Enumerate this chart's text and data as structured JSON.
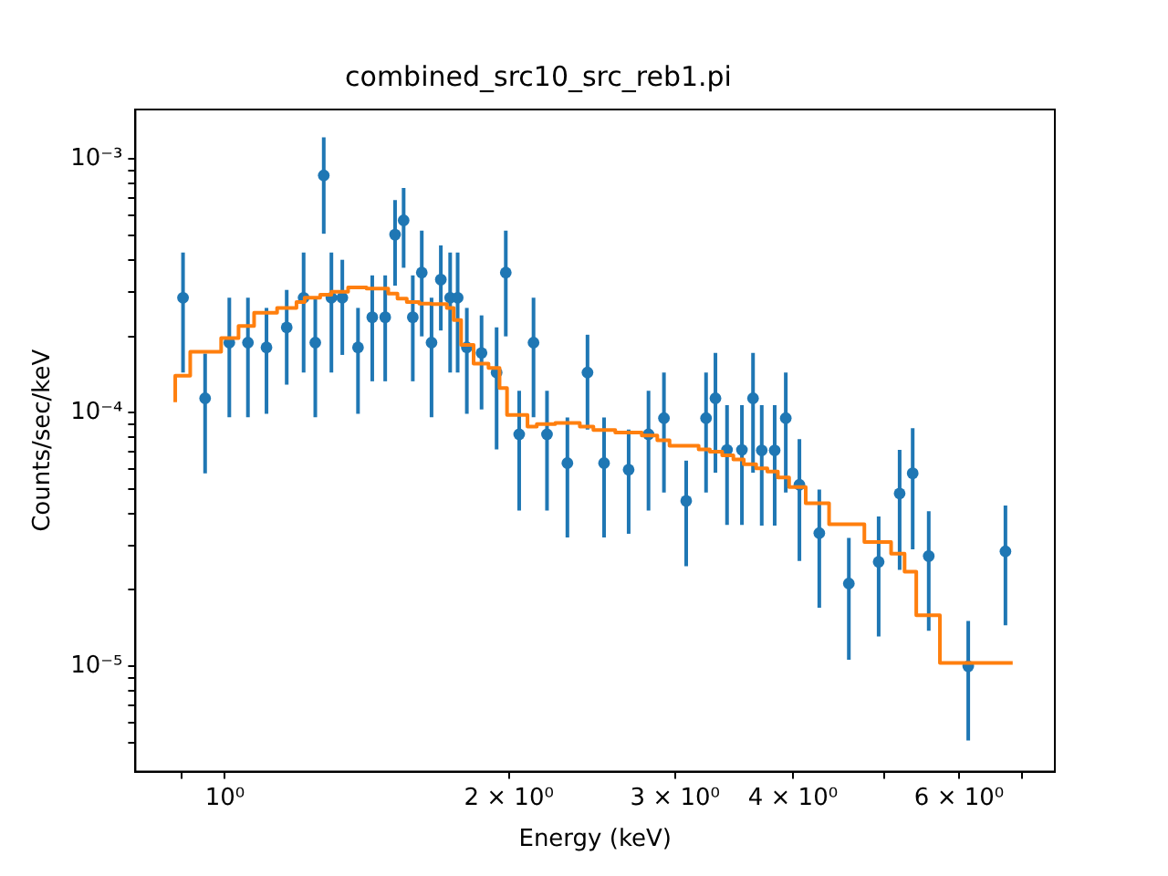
{
  "chart_data": {
    "type": "scatter",
    "title": "combined_src10_src_reb1.pi",
    "xlabel": "Energy (keV)",
    "ylabel": "Counts/sec/keV",
    "log": "xy",
    "grid": false,
    "legend": false,
    "xlim": [
      0.804,
      7.58
    ],
    "ylim": [
      3.84e-06,
      0.00157
    ],
    "xticks": [
      {
        "value": 0.9,
        "label": null
      },
      {
        "value": 1,
        "label": "10⁰"
      },
      {
        "value": 2,
        "label": "2 × 10⁰"
      },
      {
        "value": 3,
        "label": "3 × 10⁰"
      },
      {
        "value": 4,
        "label": "4 × 10⁰"
      },
      {
        "value": 5,
        "label": null
      },
      {
        "value": 6,
        "label": "6 × 10⁰"
      },
      {
        "value": 7,
        "label": null
      }
    ],
    "yticks": [
      {
        "value": 5e-06,
        "label": null
      },
      {
        "value": 6e-06,
        "label": null
      },
      {
        "value": 7e-06,
        "label": null
      },
      {
        "value": 8e-06,
        "label": null
      },
      {
        "value": 9e-06,
        "label": null
      },
      {
        "value": 1e-05,
        "label": "10⁻⁵"
      },
      {
        "value": 2e-05,
        "label": null
      },
      {
        "value": 3e-05,
        "label": null
      },
      {
        "value": 4e-05,
        "label": null
      },
      {
        "value": 5e-05,
        "label": null
      },
      {
        "value": 6e-05,
        "label": null
      },
      {
        "value": 7e-05,
        "label": null
      },
      {
        "value": 8e-05,
        "label": null
      },
      {
        "value": 9e-05,
        "label": null
      },
      {
        "value": 0.0001,
        "label": "10⁻⁴"
      },
      {
        "value": 0.0002,
        "label": null
      },
      {
        "value": 0.0003,
        "label": null
      },
      {
        "value": 0.0004,
        "label": null
      },
      {
        "value": 0.0005,
        "label": null
      },
      {
        "value": 0.0006,
        "label": null
      },
      {
        "value": 0.0007,
        "label": null
      },
      {
        "value": 0.0008,
        "label": null
      },
      {
        "value": 0.0009,
        "label": null
      },
      {
        "value": 0.001,
        "label": "10⁻³"
      }
    ],
    "series": [
      {
        "type": "scatter",
        "color": "#1f77b4",
        "marker": "circle",
        "x": [
          0.903,
          0.953,
          1.011,
          1.058,
          1.107,
          1.163,
          1.212,
          1.247,
          1.273,
          1.297,
          1.332,
          1.384,
          1.433,
          1.479,
          1.515,
          1.547,
          1.582,
          1.617,
          1.656,
          1.694,
          1.733,
          1.765,
          1.805,
          1.871,
          1.941,
          1.985,
          2.051,
          2.124,
          2.195,
          2.307,
          2.423,
          2.523,
          2.679,
          2.812,
          2.92,
          3.083,
          3.236,
          3.311,
          3.406,
          3.532,
          3.629,
          3.707,
          3.826,
          3.931,
          4.064,
          4.266,
          4.585,
          4.931,
          5.19,
          5.358,
          5.572,
          6.136,
          6.719
        ],
        "values": [
          0.000284,
          0.000114,
          0.000189,
          0.000189,
          0.000181,
          0.000217,
          0.000284,
          0.000189,
          0.000863,
          0.000284,
          0.000284,
          0.000181,
          0.000238,
          0.000238,
          0.000504,
          0.000574,
          0.000238,
          0.000357,
          0.000189,
          0.000335,
          0.000284,
          0.000284,
          0.000181,
          0.000172,
          0.000144,
          0.000357,
          8.22e-05,
          0.000189,
          8.22e-05,
          6.33e-05,
          0.000144,
          6.33e-05,
          5.96e-05,
          8.22e-05,
          9.52e-05,
          4.49e-05,
          9.52e-05,
          0.000114,
          7.13e-05,
          7.13e-05,
          0.000114,
          7.1e-05,
          7.1e-05,
          9.52e-05,
          5.2e-05,
          3.35e-05,
          2.12e-05,
          2.58e-05,
          4.8e-05,
          5.77e-05,
          2.72e-05,
          1e-05,
          2.84e-05
        ],
        "errors": [
          [
            0.000144,
            0.000428
          ],
          [
            5.77e-05,
            0.000171
          ],
          [
            9.6e-05,
            0.000284
          ],
          [
            9.6e-05,
            0.000284
          ],
          [
            9.9e-05,
            0.000259
          ],
          [
            0.000129,
            0.000305
          ],
          [
            0.000144,
            0.000428
          ],
          [
            9.6e-05,
            0.000284
          ],
          [
            0.000508,
            0.00122
          ],
          [
            0.000144,
            0.000428
          ],
          [
            0.000169,
            0.000401
          ],
          [
            9.9e-05,
            0.000259
          ],
          [
            0.000133,
            0.000348
          ],
          [
            0.000133,
            0.000348
          ],
          [
            0.000317,
            0.00069
          ],
          [
            0.000373,
            0.00077
          ],
          [
            0.000133,
            0.000348
          ],
          [
            0.0002,
            0.000523
          ],
          [
            9.6e-05,
            0.000284
          ],
          [
            0.000211,
            0.000457
          ],
          [
            0.000144,
            0.000428
          ],
          [
            0.000144,
            0.000428
          ],
          [
            9.9e-05,
            0.000259
          ],
          [
            0.000103,
            0.000242
          ],
          [
            7.17e-05,
            0.000217
          ],
          [
            0.0002,
            0.000523
          ],
          [
            4.11e-05,
            0.000122
          ],
          [
            9.6e-05,
            0.000284
          ],
          [
            4.11e-05,
            0.000122
          ],
          [
            3.22e-05,
            9.57e-05
          ],
          [
            8.58e-05,
            0.000203
          ],
          [
            3.22e-05,
            9.57e-05
          ],
          [
            3.33e-05,
            8.58e-05
          ],
          [
            4.11e-05,
            0.000122
          ],
          [
            4.84e-05,
            0.000144
          ],
          [
            2.48e-05,
            6.47e-05
          ],
          [
            4.84e-05,
            0.000144
          ],
          [
            5.8e-05,
            0.000172
          ],
          [
            3.61e-05,
            0.000107
          ],
          [
            3.61e-05,
            0.000107
          ],
          [
            5.8e-05,
            0.000172
          ],
          [
            3.59e-05,
            0.000107
          ],
          [
            3.59e-05,
            0.000107
          ],
          [
            4.84e-05,
            0.000144
          ],
          [
            2.6e-05,
            7.87e-05
          ],
          [
            1.7e-05,
            4.98e-05
          ],
          [
            1.06e-05,
            3.21e-05
          ],
          [
            1.31e-05,
            3.9e-05
          ],
          [
            2.4e-05,
            7.13e-05
          ],
          [
            2.89e-05,
            8.68e-05
          ],
          [
            1.38e-05,
            4.09e-05
          ],
          [
            5.09e-06,
            1.51e-05
          ],
          [
            1.45e-05,
            4.3e-05
          ]
        ]
      },
      {
        "type": "step",
        "color": "#ff7f0e",
        "marker": "none",
        "x": [
          0.886,
          0.919,
          0.991,
          1.034,
          1.074,
          1.136,
          1.191,
          1.215,
          1.262,
          1.297,
          1.351,
          1.413,
          1.49,
          1.524,
          1.559,
          1.607,
          1.656,
          1.719,
          1.748,
          1.78,
          1.835,
          1.903,
          1.955,
          1.991,
          2.093,
          2.141,
          2.24,
          2.378,
          2.458,
          2.593,
          2.766,
          2.873,
          2.96,
          3.178,
          3.266,
          3.366,
          3.459,
          3.548,
          3.657,
          3.758,
          3.856,
          3.963,
          4.127,
          4.369,
          4.762,
          5.083,
          5.253,
          5.405,
          5.726,
          6.558,
          6.839
        ],
        "values": [
          0.00011,
          0.00014,
          0.000174,
          0.000197,
          0.00022,
          0.000248,
          0.000259,
          0.000273,
          0.000284,
          0.000292,
          0.0003,
          0.000312,
          0.000309,
          0.000295,
          0.000282,
          0.000273,
          0.000269,
          0.000268,
          0.000259,
          0.000232,
          0.000185,
          0.000156,
          0.00015,
          0.000125,
          9.8e-05,
          8.82e-05,
          9.01e-05,
          9.11e-05,
          8.82e-05,
          8.54e-05,
          8.36e-05,
          8.13e-05,
          7.78e-05,
          7.41e-05,
          7.17e-05,
          7.02e-05,
          6.79e-05,
          6.54e-05,
          6.26e-05,
          6.03e-05,
          5.86e-05,
          5.55e-05,
          5.09e-05,
          4.39e-05,
          3.63e-05,
          3.09e-05,
          2.78e-05,
          2.36e-05,
          1.59e-05,
          1.03e-05,
          1.03e-05
        ]
      }
    ]
  }
}
